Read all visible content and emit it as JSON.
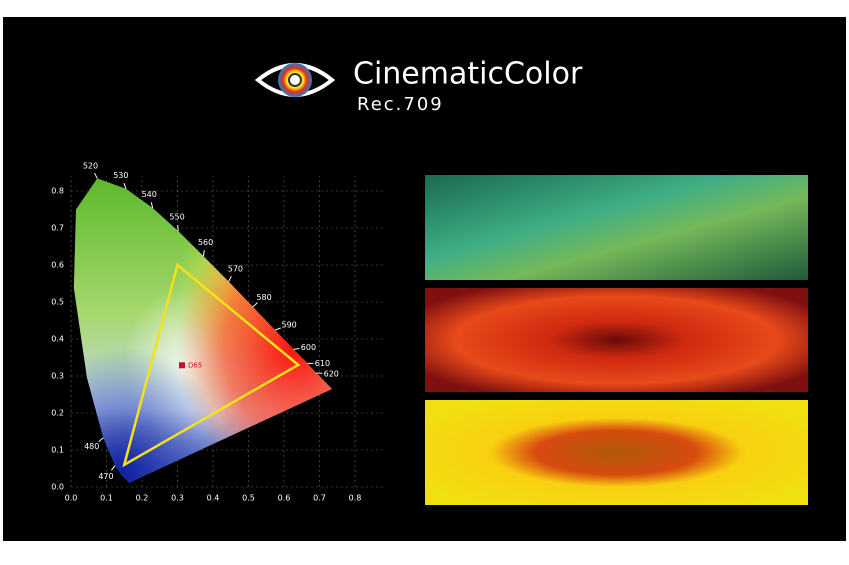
{
  "header": {
    "brand": "CinematicColor",
    "subtitle": "Rec.709"
  },
  "chart_data": {
    "type": "cie",
    "xlim": [
      0,
      0.8
    ],
    "ylim": [
      0,
      0.8
    ],
    "xticks": [
      {
        "value": 0,
        "label": "0.0"
      },
      0.1,
      0.2,
      0.3,
      0.4,
      0.5,
      0.6,
      0.7,
      0.8
    ],
    "yticks": [
      {
        "value": 0,
        "label": "0.0"
      },
      0.1,
      0.2,
      0.3,
      0.4,
      0.5,
      0.6,
      0.7,
      0.8
    ],
    "grid": true,
    "wavelength_labels": [
      470,
      480,
      520,
      530,
      540,
      550,
      560,
      570,
      580,
      590,
      600,
      610,
      620
    ],
    "gamut": {
      "x": [
        0.64,
        0.3,
        0.15
      ],
      "y": [
        0.33,
        0.6,
        0.06
      ],
      "color": "#f3e21a"
    },
    "white_point": {
      "label": "D65",
      "x": 0.3127,
      "y": 0.329,
      "color": "#c8102e"
    }
  }
}
